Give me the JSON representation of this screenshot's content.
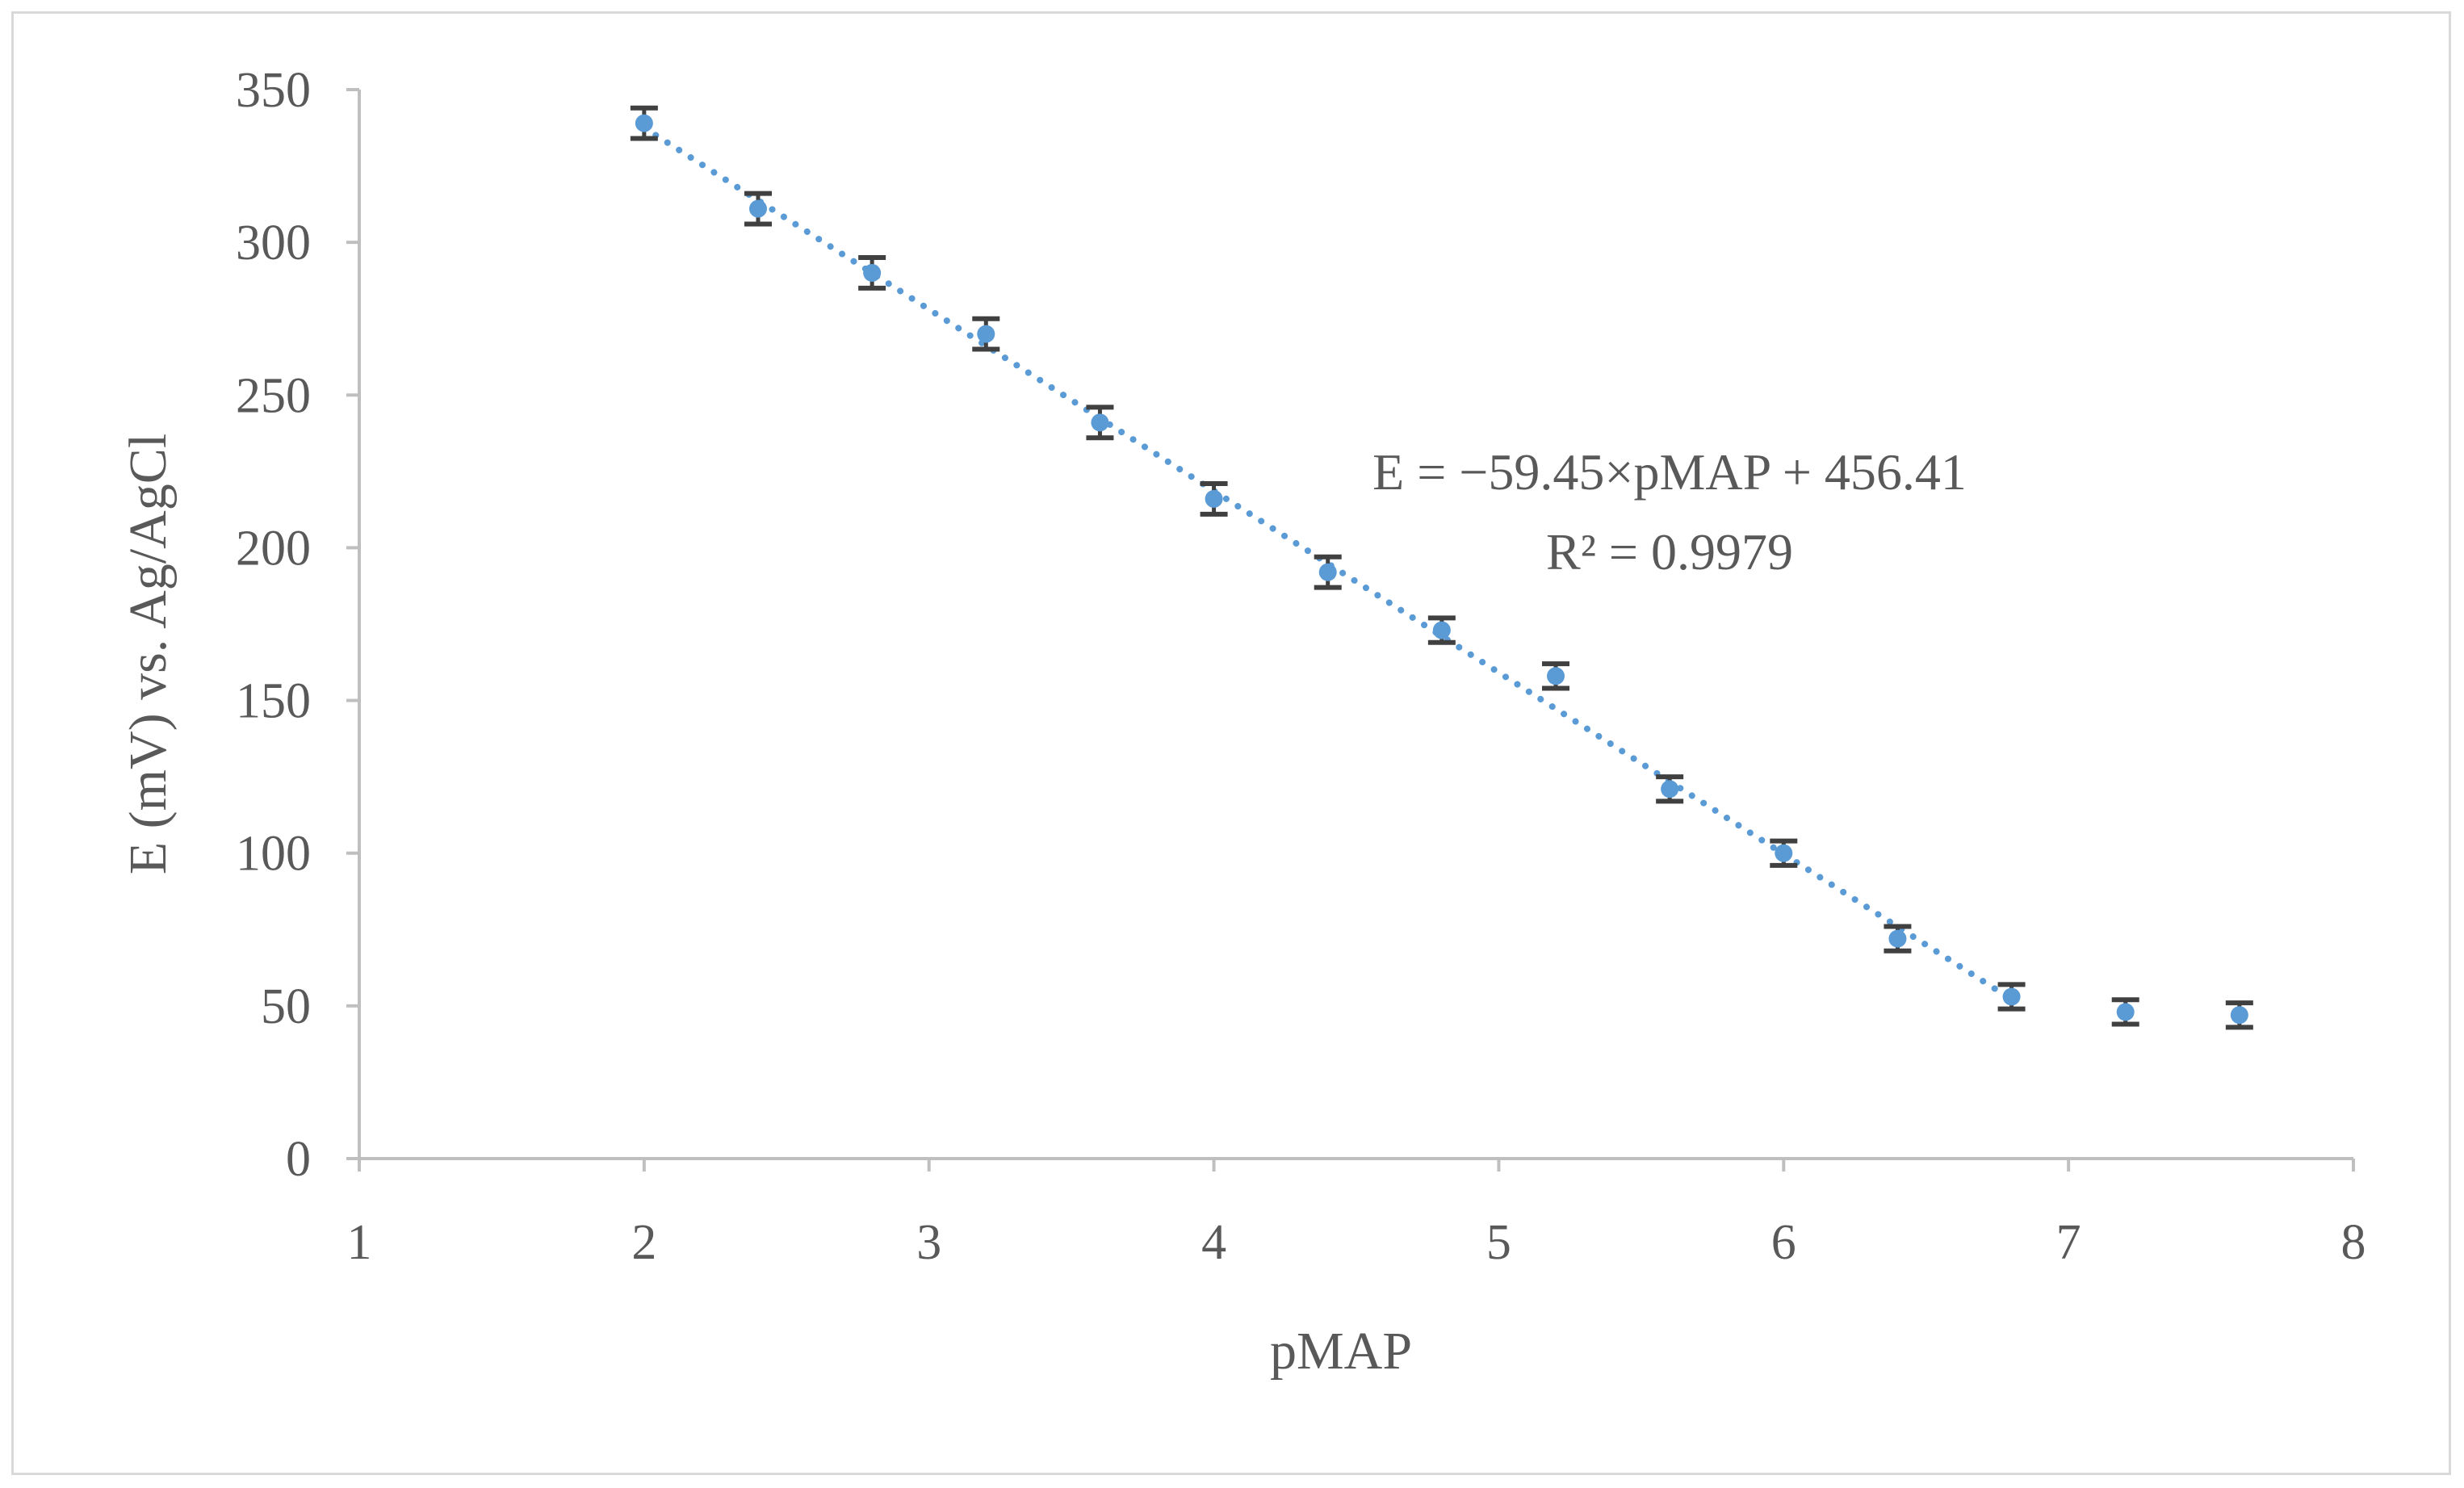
{
  "chart_data": {
    "type": "scatter",
    "xlabel": "pMAP",
    "ylabel": "E (mV) vs. Ag/AgCl",
    "xlim": [
      1,
      8
    ],
    "ylim": [
      0,
      350
    ],
    "x_ticks": [
      "1",
      "2",
      "3",
      "4",
      "5",
      "6",
      "7",
      "8"
    ],
    "y_ticks": [
      "0",
      "50",
      "100",
      "150",
      "200",
      "250",
      "300",
      "350"
    ],
    "grid": false,
    "series": [
      {
        "x": [
          2.0,
          2.4,
          2.8,
          3.2,
          3.6,
          4.0,
          4.4,
          4.8,
          5.2,
          5.6,
          6.0,
          6.4,
          6.8,
          7.2,
          7.6
        ],
        "y": [
          339,
          311,
          290,
          270,
          241,
          216,
          192,
          173,
          158,
          121,
          100,
          72,
          53,
          48,
          47
        ],
        "error": [
          5,
          5,
          5,
          5,
          5,
          5,
          5,
          4,
          4,
          4,
          4,
          4,
          4,
          4,
          4
        ],
        "color": "#5b9bd5",
        "errorbar_color": "#404040"
      }
    ],
    "trendline": {
      "type": "linear",
      "slope": -59.45,
      "intercept": 456.41,
      "x_range": [
        2.0,
        6.8
      ],
      "style": "dotted",
      "color": "#5b9bd5"
    },
    "annotations": {
      "equation": "E = −59.45×pMAP + 456.41",
      "r_squared": "R² = 0.9979"
    }
  }
}
